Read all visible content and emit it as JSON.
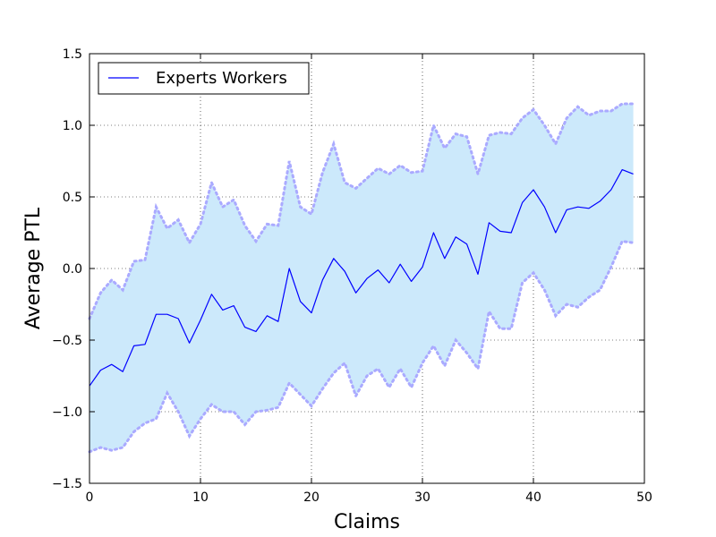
{
  "chart_data": {
    "type": "line",
    "xlabel": "Claims",
    "ylabel": "Average PTL",
    "xlim": [
      0,
      50
    ],
    "ylim": [
      -1.5,
      1.5
    ],
    "xticks": [
      0,
      10,
      20,
      30,
      40,
      50
    ],
    "yticks": [
      -1.5,
      -1.0,
      -0.5,
      0.0,
      0.5,
      1.0,
      1.5
    ],
    "xtick_labels": [
      "0",
      "10",
      "20",
      "30",
      "40",
      "50"
    ],
    "ytick_labels": [
      "−1.5",
      "−1.0",
      "−0.5",
      "0.0",
      "0.5",
      "1.0",
      "1.5"
    ],
    "grid": true,
    "legend_position": "top-left",
    "series": [
      {
        "name": "Experts Workers",
        "color": "#0000ff",
        "x": [
          0,
          1,
          2,
          3,
          4,
          5,
          6,
          7,
          8,
          9,
          10,
          11,
          12,
          13,
          14,
          15,
          16,
          17,
          18,
          19,
          20,
          21,
          22,
          23,
          24,
          25,
          26,
          27,
          28,
          29,
          30,
          31,
          32,
          33,
          34,
          35,
          36,
          37,
          38,
          39,
          40,
          41,
          42,
          43,
          44,
          45,
          46,
          47,
          48,
          49
        ],
        "values": [
          -0.82,
          -0.71,
          -0.67,
          -0.72,
          -0.54,
          -0.53,
          -0.32,
          -0.32,
          -0.35,
          -0.52,
          -0.36,
          -0.18,
          -0.29,
          -0.26,
          -0.41,
          -0.44,
          -0.33,
          -0.37,
          0.0,
          -0.23,
          -0.31,
          -0.08,
          0.07,
          -0.02,
          -0.17,
          -0.07,
          -0.01,
          -0.1,
          0.03,
          -0.09,
          0.01,
          0.25,
          0.07,
          0.22,
          0.17,
          -0.04,
          0.32,
          0.26,
          0.25,
          0.46,
          0.55,
          0.43,
          0.25,
          0.41,
          0.43,
          0.42,
          0.47,
          0.55,
          0.69,
          0.66
        ],
        "upper": [
          -0.35,
          -0.17,
          -0.08,
          -0.15,
          0.05,
          0.06,
          0.43,
          0.28,
          0.34,
          0.18,
          0.31,
          0.6,
          0.43,
          0.48,
          0.3,
          0.19,
          0.31,
          0.3,
          0.75,
          0.43,
          0.38,
          0.67,
          0.87,
          0.6,
          0.56,
          0.63,
          0.7,
          0.66,
          0.72,
          0.67,
          0.68,
          1.0,
          0.84,
          0.94,
          0.92,
          0.66,
          0.93,
          0.95,
          0.94,
          1.05,
          1.11,
          1.0,
          0.87,
          1.05,
          1.13,
          1.07,
          1.1,
          1.1,
          1.15,
          1.15
        ],
        "lower": [
          -1.28,
          -1.25,
          -1.27,
          -1.25,
          -1.14,
          -1.08,
          -1.05,
          -0.87,
          -1.0,
          -1.17,
          -1.05,
          -0.95,
          -1.0,
          -1.0,
          -1.09,
          -1.0,
          -0.99,
          -0.97,
          -0.8,
          -0.88,
          -0.96,
          -0.84,
          -0.73,
          -0.66,
          -0.89,
          -0.75,
          -0.7,
          -0.83,
          -0.7,
          -0.83,
          -0.66,
          -0.54,
          -0.68,
          -0.5,
          -0.59,
          -0.7,
          -0.3,
          -0.42,
          -0.42,
          -0.1,
          -0.03,
          -0.15,
          -0.33,
          -0.25,
          -0.27,
          -0.2,
          -0.15,
          0.01,
          0.19,
          0.18
        ],
        "band_color": "#cce9fb",
        "band_edge_color": "#aaaaff"
      }
    ]
  }
}
